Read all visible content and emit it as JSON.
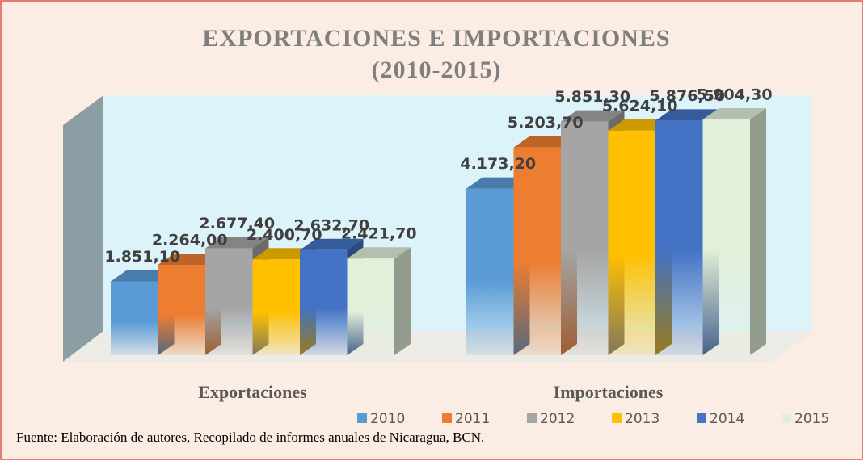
{
  "chart_data": {
    "type": "bar3d",
    "title": "EXPORTACIONES E IMPORTACIONES",
    "subtitle": "(2010-2015)",
    "categories": [
      "Exportaciones",
      "Importaciones"
    ],
    "series": [
      {
        "name": "2010",
        "color": "#5b9bd5",
        "values": [
          1851.1,
          4173.2
        ],
        "value_labels": [
          "1.851,10",
          "4.173,20"
        ]
      },
      {
        "name": "2011",
        "color": "#ed7d31",
        "values": [
          2264.0,
          5203.7
        ],
        "value_labels": [
          "2.264,00",
          "5.203,70"
        ]
      },
      {
        "name": "2012",
        "color": "#a5a5a5",
        "values": [
          2677.4,
          5851.3
        ],
        "value_labels": [
          "2.677,40",
          "5.851,30"
        ]
      },
      {
        "name": "2013",
        "color": "#ffc000",
        "values": [
          2400.7,
          5624.1
        ],
        "value_labels": [
          "2.400,70",
          "5.624,10"
        ]
      },
      {
        "name": "2014",
        "color": "#4472c4",
        "values": [
          2632.7,
          5876.5
        ],
        "value_labels": [
          "2.632,70",
          "5.876,50"
        ]
      },
      {
        "name": "2015",
        "color": "#e2efd9",
        "values": [
          2421.7,
          5904.3
        ],
        "value_labels": [
          "2.421,70",
          "5.904,30"
        ]
      }
    ],
    "ylim": [
      0,
      6500
    ],
    "legend": "bottom",
    "source": "Fuente: Elaboración de autores,  Recopilado de  informes anuales de Nicaragua, BCN."
  }
}
